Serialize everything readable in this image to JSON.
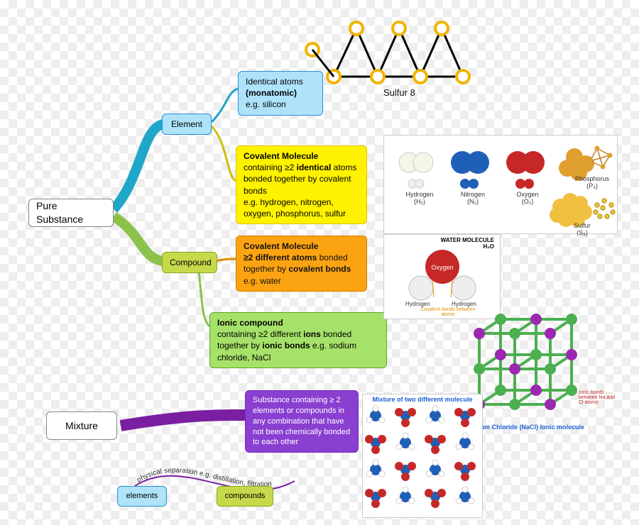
{
  "root": {
    "pure_substance": "Pure Substance",
    "mixture": "Mixture"
  },
  "element": {
    "label": "Element",
    "identical": {
      "line1": "Identical atoms",
      "line2": "(monatomic)",
      "line3": "e.g. silicon"
    }
  },
  "compound": {
    "label": "Compound",
    "covalent_identical": {
      "title": "Covalent Molecule",
      "body": "containing ≥2 identical atoms bonded together by covalent bonds",
      "eg": "e.g. hydrogen, nitrogen, oxygen, phosphorus, sulfur"
    },
    "covalent_different": {
      "title": "Covalent Molecule",
      "body": "≥2 different atoms bonded together by covalent bonds",
      "eg": "e.g. water"
    },
    "ionic": {
      "title": "Ionic compound",
      "body": "containing ≥2 different ions bonded together by ionic bonds e.g. sodium chloride, NaCl"
    }
  },
  "mixture": {
    "def": "Substance containing ≥ 2 elements or compounds in any combination that have not been chemically bonded to each other",
    "sep": "physical separation e.g. distillation, filtration",
    "elements": "elements",
    "compounds": "compounds"
  },
  "molecules": {
    "h2": "Hydrogen\n(H₂)",
    "n2": "Nitrogen\n(N₂)",
    "o2": "Oxygen\n(O₂)",
    "p4": "Phosphorus\n(P₄)",
    "s8_big": "Sulfur\n(S₈)",
    "water_title": "WATER MOLECULE\nH₂O",
    "water_o": "Oxygen",
    "water_h": "Hydrogen",
    "water_bond": "Covalent bonds between atoms",
    "nacl_title": "Sodium Chloride (NaCl) Ionic molecule",
    "nacl_note": "Ionic bonds between Na and Cl atoms",
    "mix_title": "Mixture of two different molecule",
    "s8_label": "Sulfur 8"
  },
  "colors": {
    "branch_blue": "#1fa7c9",
    "branch_green": "#8bc34a",
    "branch_purple": "#7b1fa2",
    "sulfur_ring": "#f0b400",
    "nitrogen": "#1f5fb8",
    "oxygen": "#c62828",
    "phosphorus": "#e0a030",
    "sulfur_atom": "#f0c040",
    "lattice_na": "#9c27b0",
    "lattice_cl": "#4caf50"
  }
}
